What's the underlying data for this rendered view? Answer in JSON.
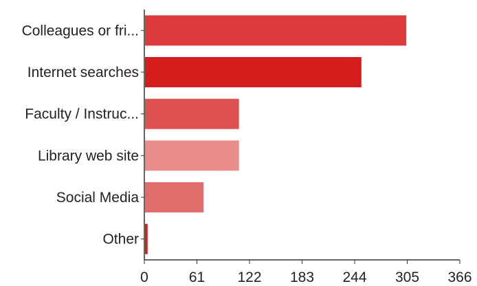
{
  "chart_data": {
    "type": "bar",
    "orientation": "horizontal",
    "categories": [
      "Colleagues or fri...",
      "Internet searches",
      "Faculty / Instruc...",
      "Library web site",
      "Social Media",
      "Other"
    ],
    "values": [
      303,
      251,
      109,
      109,
      68,
      3
    ],
    "colors": [
      "#dd3b3b",
      "#d41e1e",
      "#e05050",
      "#e88c8c",
      "#e06c6c",
      "#d41e1e"
    ],
    "x_ticks": [
      "0",
      "61",
      "122",
      "183",
      "244",
      "305",
      "366"
    ],
    "xlim": [
      0,
      366
    ],
    "title": "",
    "xlabel": "",
    "ylabel": "",
    "grid": false,
    "legend": "none"
  }
}
